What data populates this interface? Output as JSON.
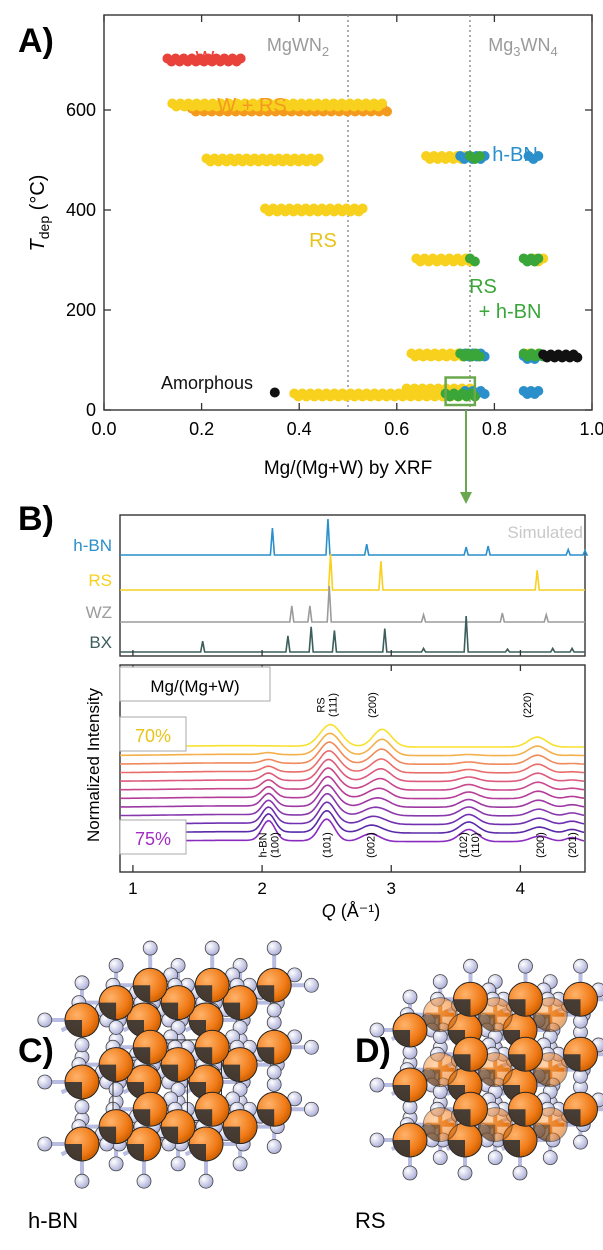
{
  "panel_labels": {
    "a": "A)",
    "b": "B)",
    "c": "C)",
    "d": "D)"
  },
  "colors": {
    "W": "#e8423a",
    "W_RS": "#f39a1f",
    "RS": "#f7d11d",
    "hBN": "#2a8fca",
    "RShBN": "#3aa63a",
    "amorphous": "#111111",
    "WZ": "#9b9b9b",
    "BX": "#3c5e5c",
    "sim_label": "#c8c8c8",
    "ref_line": "#8a8a8a",
    "box": "#6aa84f"
  },
  "chart_data": [
    {
      "type": "scatter",
      "panel": "A)",
      "xlabel": "Mg/(Mg+W) by XRF",
      "ylabel_main": "T",
      "ylabel_sub": "dep",
      "ylabel_unit": "(°C)",
      "xlim": [
        0.0,
        1.0
      ],
      "ylim": [
        0,
        790
      ],
      "xticks": [
        "0.0",
        "0.2",
        "0.4",
        "0.6",
        "0.8",
        "1.0"
      ],
      "yticks": [
        "0",
        "200",
        "400",
        "600"
      ],
      "top_labels": {
        "MgWN2": {
          "base": "MgWN",
          "sub": "2",
          "x": 0.5
        },
        "Mg3WN4": {
          "pre": "Mg",
          "sub1": "3",
          "mid": "WN",
          "sub2": "4",
          "x": 0.75
        }
      },
      "phase_labels": {
        "W": "W",
        "W_RS": "W + RS",
        "hBN": "h-BN",
        "RS": "RS",
        "RShBN_1": "RS",
        "RShBN_2": "+ h-BN",
        "amorphous": "Amorphous"
      },
      "series": [
        {
          "phase": "W",
          "segments": [
            {
              "x": [
                0.13,
                0.28
              ],
              "y": 700
            }
          ]
        },
        {
          "phase": "W + RS",
          "segments": [
            {
              "x": [
                0.18,
                0.58
              ],
              "y": 600
            }
          ]
        },
        {
          "phase": "RS",
          "segments": [
            {
              "x": [
                0.14,
                0.57
              ],
              "y": 610
            },
            {
              "x": [
                0.21,
                0.44
              ],
              "y": 500
            },
            {
              "x": [
                0.33,
                0.53
              ],
              "y": 400
            },
            {
              "x": [
                0.66,
                0.74
              ],
              "y": 505
            },
            {
              "x": [
                0.64,
                0.75
              ],
              "y": 300
            },
            {
              "x": [
                0.88,
                0.9
              ],
              "y": 300
            },
            {
              "x": [
                0.63,
                0.75
              ],
              "y": 110
            },
            {
              "x": [
                0.87,
                0.89
              ],
              "y": 110
            },
            {
              "x": [
                0.39,
                0.76
              ],
              "y": 30
            },
            {
              "x": [
                0.62,
                0.75
              ],
              "y": 40
            }
          ]
        },
        {
          "phase": "h-BN",
          "segments": [
            {
              "x": [
                0.73,
                0.78
              ],
              "y": 505
            },
            {
              "x": [
                0.87,
                0.89
              ],
              "y": 505
            },
            {
              "x": [
                0.74,
                0.78
              ],
              "y": 110
            },
            {
              "x": [
                0.86,
                0.89
              ],
              "y": 105
            },
            {
              "x": [
                0.74,
                0.78
              ],
              "y": 35
            },
            {
              "x": [
                0.86,
                0.89
              ],
              "y": 35
            }
          ]
        },
        {
          "phase": "RS + h-BN",
          "segments": [
            {
              "x": [
                0.75,
                0.77
              ],
              "y": 505
            },
            {
              "x": [
                0.75,
                0.76
              ],
              "y": 300
            },
            {
              "x": [
                0.86,
                0.89
              ],
              "y": 300
            },
            {
              "x": [
                0.73,
                0.77
              ],
              "y": 110
            },
            {
              "x": [
                0.86,
                0.9
              ],
              "y": 110
            },
            {
              "x": [
                0.7,
                0.76
              ],
              "y": 30
            }
          ]
        },
        {
          "phase": "Amorphous",
          "segments": [
            {
              "x": [
                0.9,
                0.97
              ],
              "y": 108
            }
          ],
          "points": [
            {
              "x": 0.35,
              "y": 35
            }
          ]
        }
      ],
      "highlight_box": {
        "x": [
          0.7,
          0.76
        ],
        "y": [
          10,
          65
        ]
      }
    },
    {
      "type": "line",
      "panel": "B)",
      "subpanel": "simulated",
      "sim_label": "Simulated",
      "series": [
        {
          "name": "h-BN",
          "peaks": [
            [
              2.08,
              0.75
            ],
            [
              2.51,
              1.0
            ],
            [
              2.81,
              0.3
            ],
            [
              3.58,
              0.22
            ],
            [
              3.75,
              0.25
            ],
            [
              4.37,
              0.15
            ],
            [
              4.5,
              0.12
            ]
          ]
        },
        {
          "name": "RS",
          "peaks": [
            [
              2.53,
              1.0
            ],
            [
              2.92,
              0.8
            ],
            [
              4.13,
              0.55
            ]
          ]
        },
        {
          "name": "WZ",
          "peaks": [
            [
              2.23,
              0.45
            ],
            [
              2.37,
              0.45
            ],
            [
              2.52,
              1.0
            ],
            [
              3.25,
              0.2
            ],
            [
              3.86,
              0.25
            ],
            [
              4.2,
              0.2
            ]
          ]
        },
        {
          "name": "BX",
          "peaks": [
            [
              1.54,
              0.3
            ],
            [
              2.2,
              0.45
            ],
            [
              2.38,
              0.7
            ],
            [
              2.56,
              0.6
            ],
            [
              2.95,
              0.65
            ],
            [
              3.25,
              0.1
            ],
            [
              3.58,
              1.0
            ],
            [
              3.9,
              0.08
            ],
            [
              4.25,
              0.1
            ],
            [
              4.4,
              0.1
            ]
          ]
        }
      ]
    },
    {
      "type": "line",
      "panel": "B)",
      "subpanel": "measured",
      "xlabel_main": "Q",
      "xlabel_unit": "(Å⁻¹)",
      "ylabel": "Normalized Intensity",
      "xlim": [
        0.9,
        4.5
      ],
      "xticks": [
        "1",
        "2",
        "3",
        "4"
      ],
      "legend_title": "Mg/(Mg+W)",
      "top_label": "70%",
      "bottom_label": "75%",
      "n_series": 12,
      "rs_peak_labels": [
        {
          "q": 2.53,
          "lines": [
            "RS",
            "(111)"
          ]
        },
        {
          "q": 2.93,
          "lines": [
            "(200)"
          ]
        },
        {
          "q": 4.13,
          "lines": [
            "(220)"
          ]
        }
      ],
      "hbn_peak_labels": [
        {
          "q": 2.05,
          "lines": [
            "h-BN",
            "(100)"
          ]
        },
        {
          "q": 2.5,
          "lines": [
            "(101)"
          ]
        },
        {
          "q": 2.84,
          "lines": [
            "(002)"
          ]
        },
        {
          "q": 3.6,
          "lines": [
            "(102)",
            "(110)"
          ]
        },
        {
          "q": 4.15,
          "lines": [
            "(200)"
          ]
        },
        {
          "q": 4.4,
          "lines": [
            "(201)"
          ]
        }
      ]
    }
  ],
  "structures": {
    "c_label": "h-BN",
    "d_label": "RS"
  }
}
